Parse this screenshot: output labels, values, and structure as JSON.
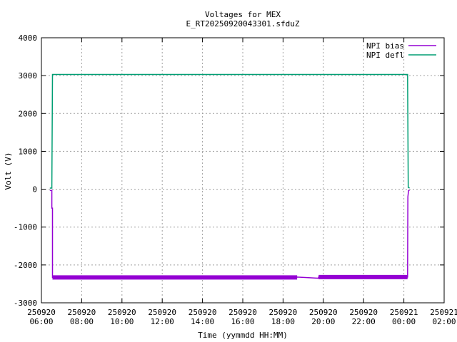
{
  "chart_data": {
    "type": "line",
    "title": "Voltages for MEX",
    "subtitle": "E_RT20250920043301.sfduZ",
    "xlabel": "Time (yymmdd HH:MM)",
    "ylabel": "Volt (V)",
    "ylim": [
      -3000,
      4000
    ],
    "yticks": [
      "4000",
      "3000",
      "2000",
      "1000",
      "0",
      "-1000",
      "-2000",
      "-3000"
    ],
    "xlim": [
      "250920 06:00",
      "250921 02:00"
    ],
    "xticks": [
      [
        "250920",
        "06:00"
      ],
      [
        "250920",
        "08:00"
      ],
      [
        "250920",
        "10:00"
      ],
      [
        "250920",
        "12:00"
      ],
      [
        "250920",
        "14:00"
      ],
      [
        "250920",
        "16:00"
      ],
      [
        "250920",
        "18:00"
      ],
      [
        "250920",
        "20:00"
      ],
      [
        "250920",
        "22:00"
      ],
      [
        "250921",
        "00:00"
      ],
      [
        "250921",
        "02:00"
      ]
    ],
    "grid": true,
    "legend_position": "top-right",
    "series": [
      {
        "name": "NPI bias",
        "color": "#9400d3",
        "points": [
          [
            "250920 06:25",
            -30
          ],
          [
            "250920 06:31",
            -30
          ],
          [
            "250920 06:31",
            -500
          ],
          [
            "250920 06:33",
            -500
          ],
          [
            "250920 06:33",
            -2330
          ],
          [
            "250920 18:42",
            -2320
          ],
          [
            "250920 19:45",
            -2350
          ],
          [
            "250920 19:46",
            -2320
          ],
          [
            "250921 00:11",
            -2320
          ],
          [
            "250921 00:12",
            -200
          ],
          [
            "250921 00:14",
            -30
          ],
          [
            "250921 00:17",
            -30
          ]
        ]
      },
      {
        "name": "NPI defl",
        "color": "#009e73",
        "points": [
          [
            "250920 06:25",
            30
          ],
          [
            "250920 06:31",
            30
          ],
          [
            "250920 06:33",
            3030
          ],
          [
            "250921 00:11",
            3030
          ],
          [
            "250921 00:13",
            50
          ],
          [
            "250921 00:17",
            30
          ]
        ]
      }
    ]
  }
}
